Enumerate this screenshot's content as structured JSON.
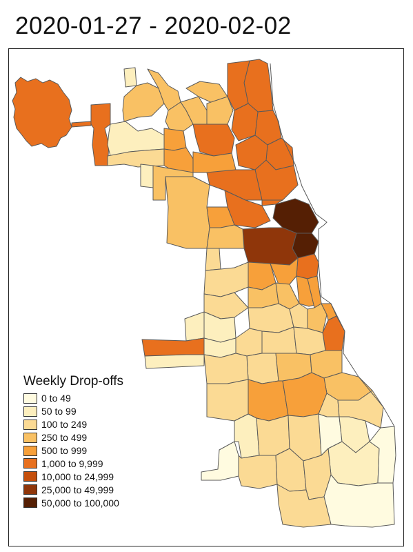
{
  "title": "2020-01-27 - 2020-02-02",
  "legend": {
    "title": "Weekly Drop-offs",
    "bins": [
      {
        "label": "0 to 49",
        "color": "#fffbe0"
      },
      {
        "label": "50 to 99",
        "color": "#fdefbe"
      },
      {
        "label": "100 to 249",
        "color": "#fbda94"
      },
      {
        "label": "250 to 499",
        "color": "#f9c164"
      },
      {
        "label": "500 to 999",
        "color": "#f7a03a"
      },
      {
        "label": "1,000 to 9,999",
        "color": "#e8701e"
      },
      {
        "label": "10,000 to 24,999",
        "color": "#c54f0c"
      },
      {
        "label": "25,000 to 49,999",
        "color": "#8f360a"
      },
      {
        "label": "50,000 to 100,000",
        "color": "#551f04"
      }
    ]
  }
}
